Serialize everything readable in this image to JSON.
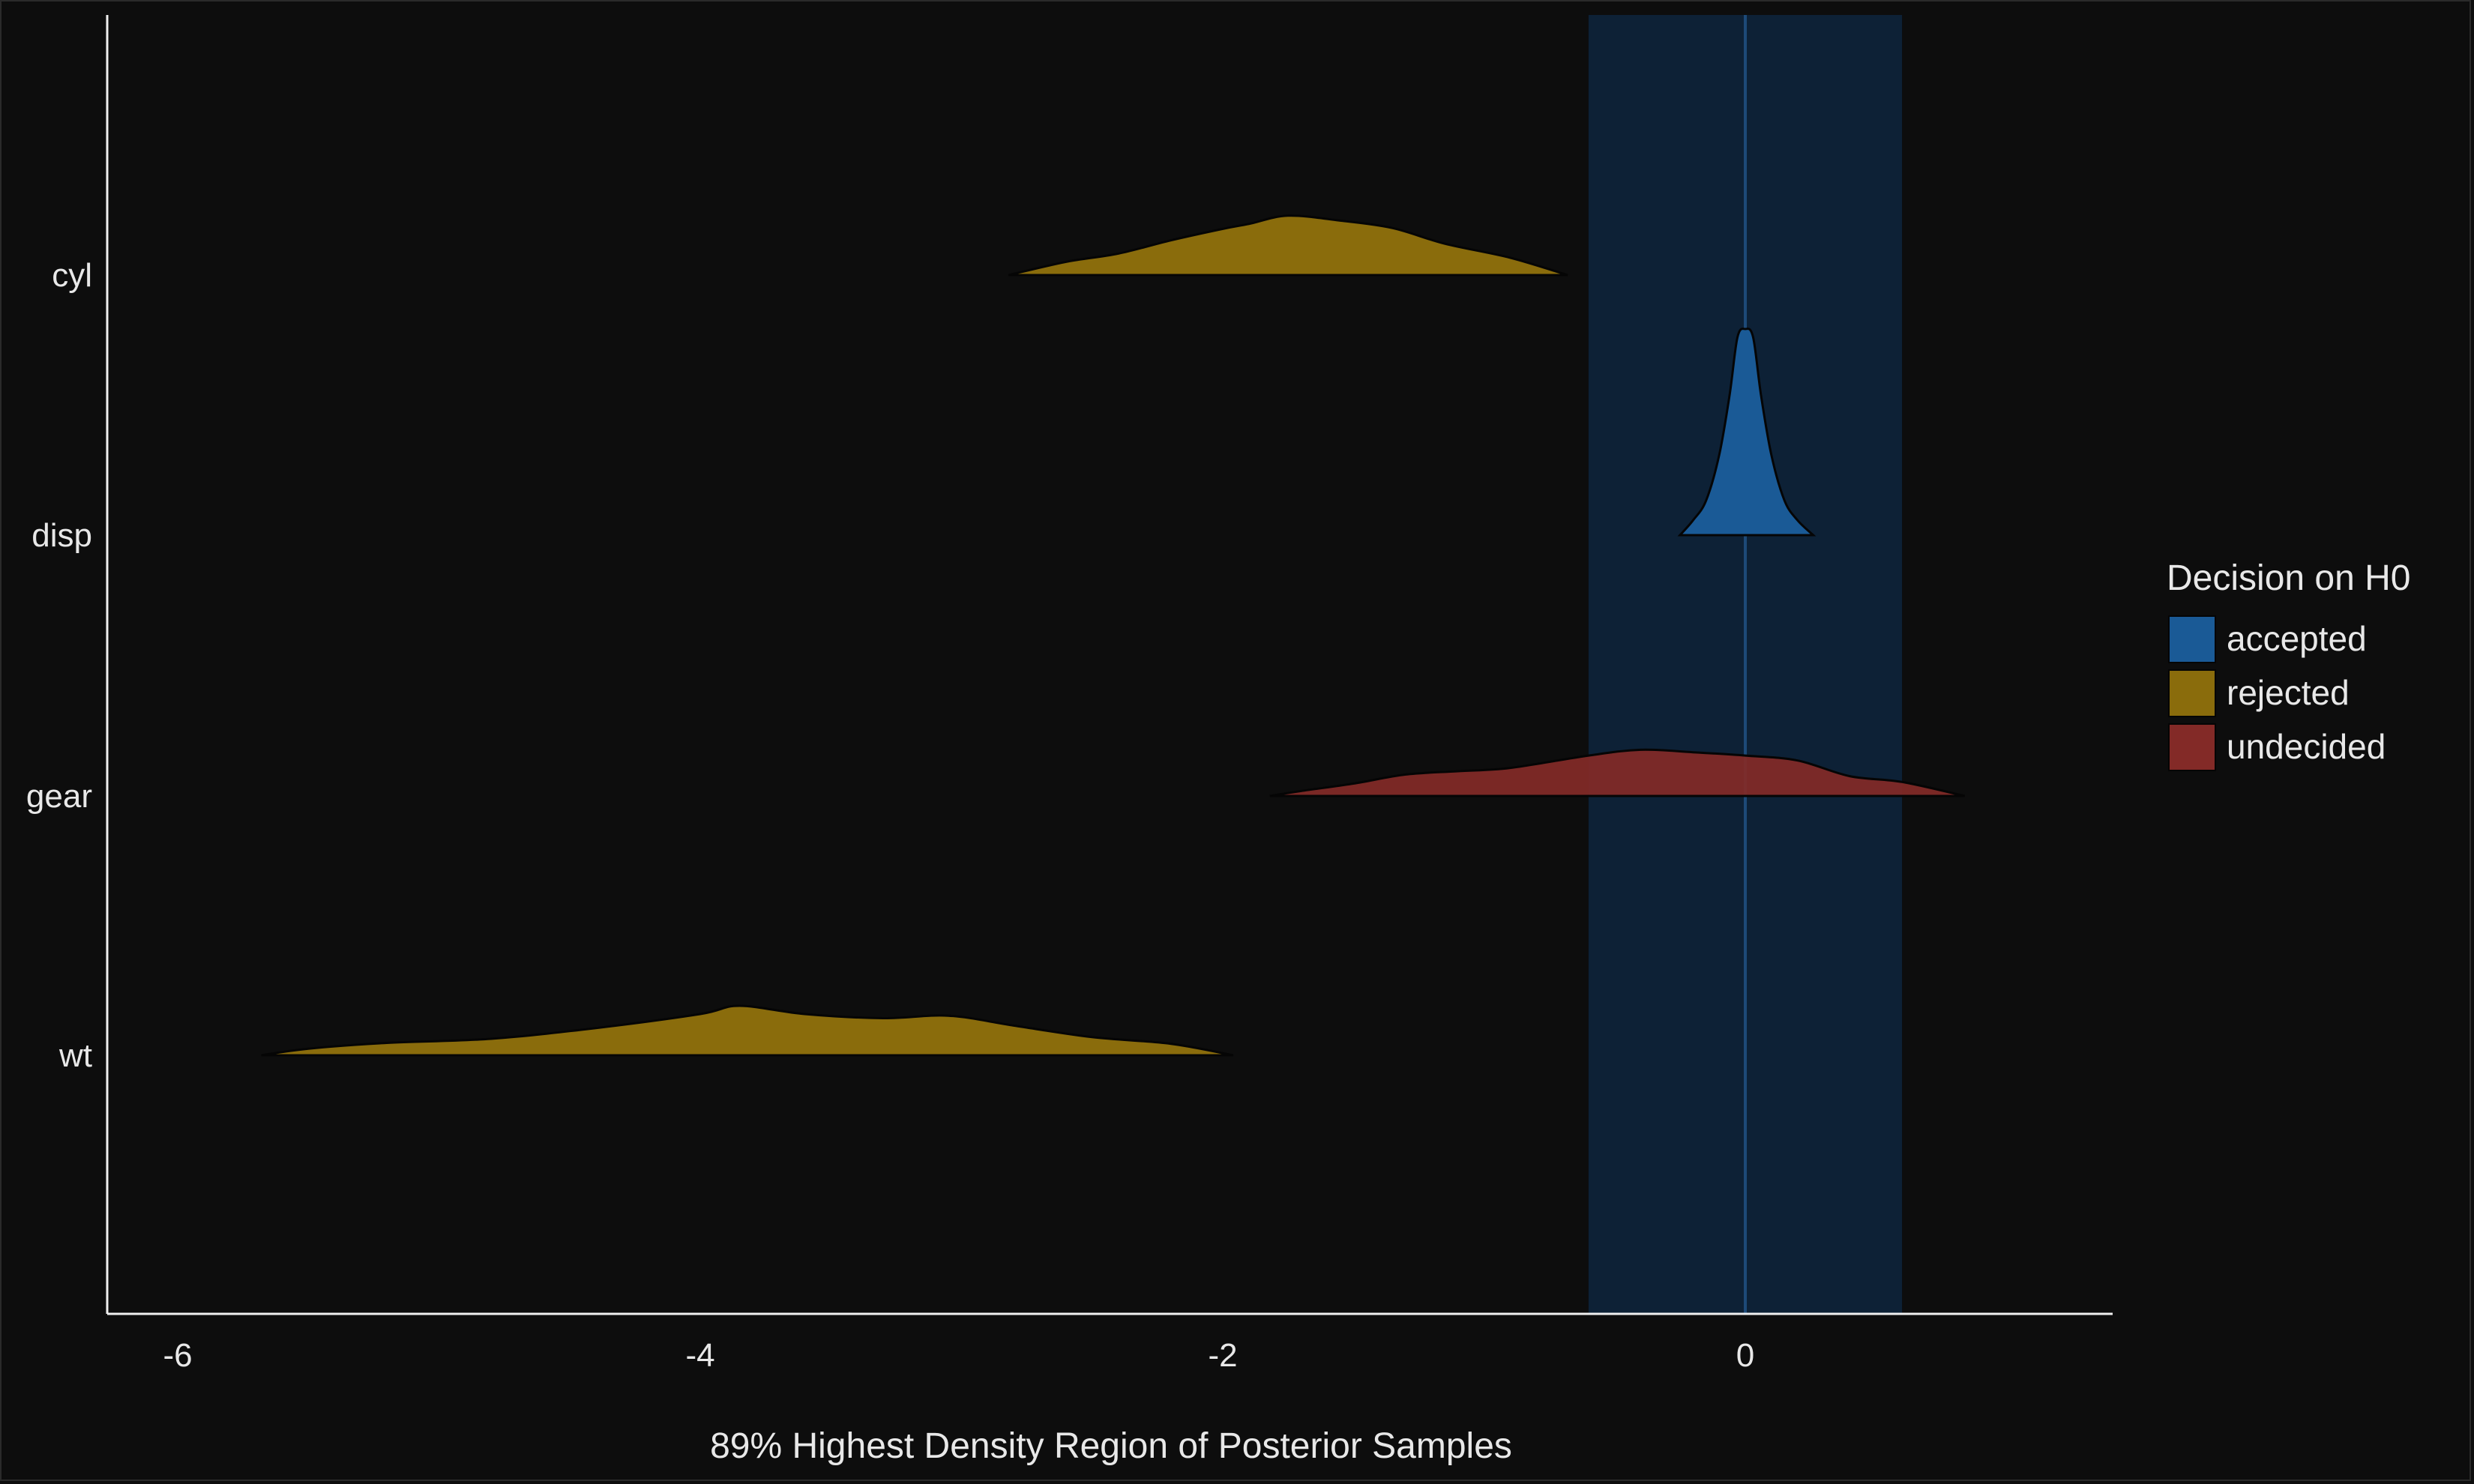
{
  "chart_data": {
    "type": "density-ridges",
    "title": "",
    "xlabel": "89% Highest Density Region of Posterior Samples",
    "ylabel": "",
    "xlim": [
      -6,
      1.4
    ],
    "xticks": [
      -6,
      -4,
      -2,
      0
    ],
    "rope": [
      -0.6,
      0.6
    ],
    "null_value": 0,
    "grid": false,
    "legend": {
      "title": "Decision on H0",
      "placement": "right",
      "entries": [
        {
          "label": "accepted",
          "color": "#1a5a96"
        },
        {
          "label": "rejected",
          "color": "#8a6c0c"
        },
        {
          "label": "undecided",
          "color": "#832a27"
        }
      ]
    },
    "series": [
      {
        "name": "cyl",
        "decision": "rejected",
        "density": [
          [
            -2.82,
            0
          ],
          [
            -2.6,
            0.16
          ],
          [
            -2.4,
            0.26
          ],
          [
            -2.2,
            0.42
          ],
          [
            -2.0,
            0.56
          ],
          [
            -1.9,
            0.62
          ],
          [
            -1.75,
            0.72
          ],
          [
            -1.55,
            0.66
          ],
          [
            -1.35,
            0.57
          ],
          [
            -1.15,
            0.38
          ],
          [
            -0.9,
            0.21
          ],
          [
            -0.68,
            0
          ]
        ]
      },
      {
        "name": "disp",
        "decision": "accepted",
        "density": [
          [
            -0.25,
            0
          ],
          [
            -0.2,
            0.18
          ],
          [
            -0.15,
            0.42
          ],
          [
            -0.1,
            0.97
          ],
          [
            -0.06,
            1.7
          ],
          [
            -0.03,
            2.4
          ],
          [
            0,
            2.5
          ],
          [
            0.03,
            2.4
          ],
          [
            0.06,
            1.7
          ],
          [
            0.1,
            0.97
          ],
          [
            0.15,
            0.42
          ],
          [
            0.2,
            0.18
          ],
          [
            0.26,
            0
          ]
        ]
      },
      {
        "name": "gear",
        "decision": "undecided",
        "density": [
          [
            -1.82,
            0
          ],
          [
            -1.7,
            0.06
          ],
          [
            -1.5,
            0.15
          ],
          [
            -1.3,
            0.26
          ],
          [
            -1.1,
            0.3
          ],
          [
            -0.9,
            0.34
          ],
          [
            -0.6,
            0.49
          ],
          [
            -0.4,
            0.56
          ],
          [
            -0.2,
            0.53
          ],
          [
            0,
            0.49
          ],
          [
            0.2,
            0.43
          ],
          [
            0.4,
            0.24
          ],
          [
            0.6,
            0.17
          ],
          [
            0.84,
            0
          ]
        ]
      },
      {
        "name": "wt",
        "decision": "rejected",
        "density": [
          [
            -5.68,
            0
          ],
          [
            -5.5,
            0.08
          ],
          [
            -5.2,
            0.15
          ],
          [
            -4.8,
            0.2
          ],
          [
            -4.4,
            0.33
          ],
          [
            -4.0,
            0.5
          ],
          [
            -3.85,
            0.6
          ],
          [
            -3.6,
            0.5
          ],
          [
            -3.3,
            0.45
          ],
          [
            -3.05,
            0.48
          ],
          [
            -2.8,
            0.36
          ],
          [
            -2.5,
            0.22
          ],
          [
            -2.2,
            0.14
          ],
          [
            -1.96,
            0
          ]
        ]
      }
    ]
  }
}
